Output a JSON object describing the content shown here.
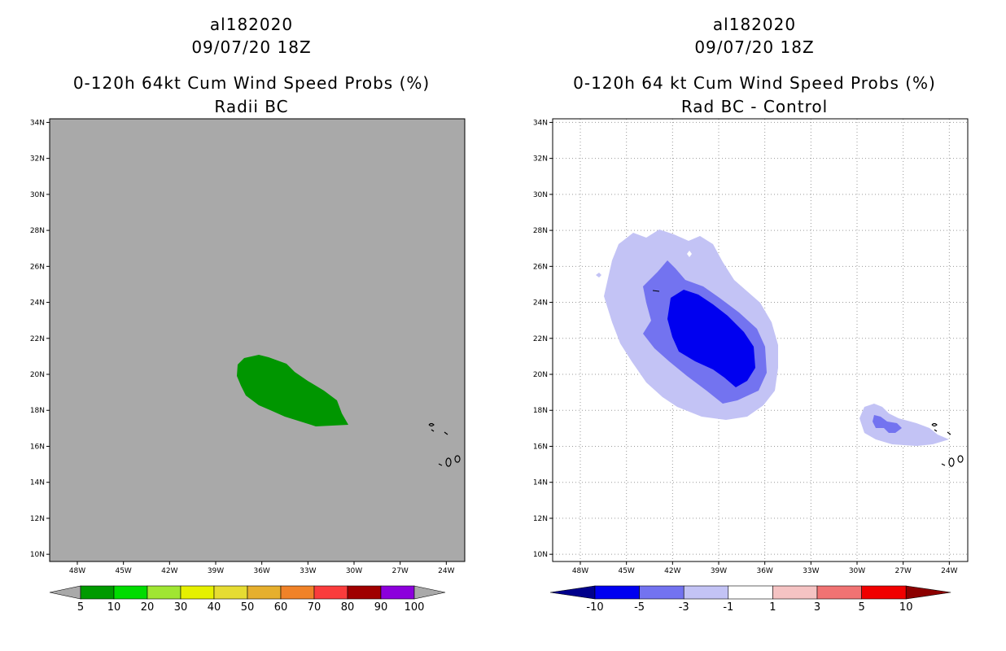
{
  "left": {
    "title": [
      "al182020",
      "09/07/20 18Z",
      "0-120h 64kt Cum Wind Speed Probs (%)",
      "Radii BC"
    ],
    "background_color": "#a9a9a9",
    "lat_labels": [
      "34N",
      "32N",
      "30N",
      "28N",
      "26N",
      "24N",
      "22N",
      "20N",
      "18N",
      "16N",
      "14N",
      "12N",
      "10N"
    ],
    "lon_labels": [
      "48W",
      "45W",
      "42W",
      "39W",
      "36W",
      "33W",
      "30W",
      "27W",
      "24W"
    ],
    "colorbar": {
      "colors": [
        "#009a00",
        "#00dc00",
        "#a0e632",
        "#e6f000",
        "#e6dc32",
        "#e6af2d",
        "#f08228",
        "#fa3c3c",
        "#a00000",
        "#8c00dc"
      ],
      "arrow_color": "#a9a9a9",
      "labels": [
        "5",
        "10",
        "20",
        "30",
        "40",
        "50",
        "60",
        "70",
        "80",
        "90",
        "100"
      ]
    },
    "region_color": "#009600"
  },
  "right": {
    "title": [
      "al182020",
      "09/07/20 18Z",
      "0-120h 64 kt Cum Wind Speed Probs (%)",
      "Rad BC - Control"
    ],
    "background_color": "#ffffff",
    "lat_labels": [
      "34N",
      "32N",
      "30N",
      "28N",
      "26N",
      "24N",
      "22N",
      "20N",
      "18N",
      "16N",
      "14N",
      "12N",
      "10N"
    ],
    "lon_labels": [
      "48W",
      "45W",
      "42W",
      "39W",
      "36W",
      "33W",
      "30W",
      "27W",
      "24W"
    ],
    "colorbar": {
      "colors": [
        "#0000f0",
        "#7373f0",
        "#c3c3f5",
        "#ffffff",
        "#f5c3c3",
        "#f07373",
        "#f00000"
      ],
      "arrow_low_color": "#00008c",
      "arrow_high_color": "#8c0000",
      "labels": [
        "-10",
        "-5",
        "-3",
        "-1",
        "1",
        "3",
        "5",
        "10"
      ]
    },
    "level_colors": {
      "neg3": "#c3c3f5",
      "neg5": "#7373f0",
      "neg10": "#0000f0"
    }
  }
}
